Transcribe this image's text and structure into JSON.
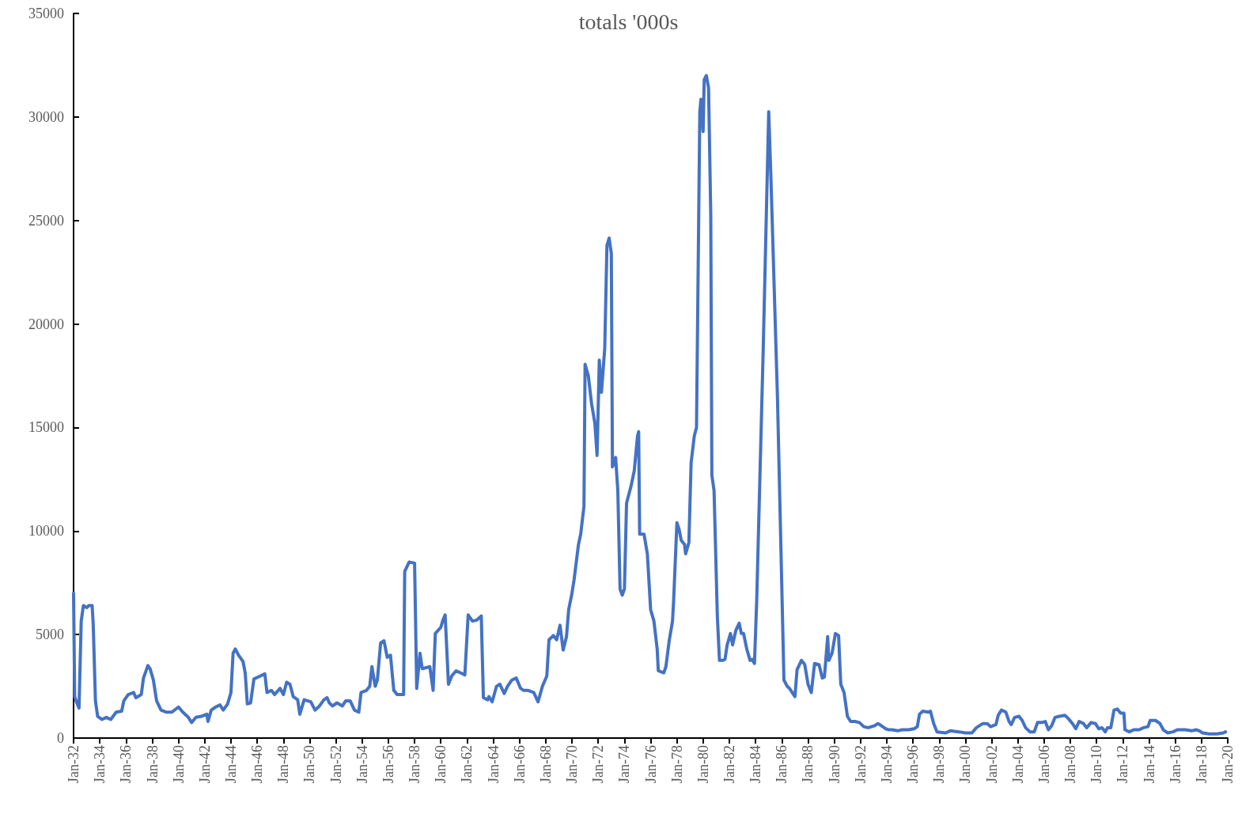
{
  "chart_data": {
    "type": "line",
    "title": "totals '000s",
    "marker": "none",
    "line_style": "solid",
    "xlim": [
      "1932-01",
      "2020-01"
    ],
    "xticks": [
      {
        "value": "1932-01",
        "label": "Jan-32"
      },
      {
        "value": "1934-01",
        "label": "Jan-34"
      },
      {
        "value": "1936-01",
        "label": "Jan-36"
      },
      {
        "value": "1938-01",
        "label": "Jan-38"
      },
      {
        "value": "1940-01",
        "label": "Jan-40"
      },
      {
        "value": "1942-01",
        "label": "Jan-42"
      },
      {
        "value": "1944-01",
        "label": "Jan-44"
      },
      {
        "value": "1946-01",
        "label": "Jan-46"
      },
      {
        "value": "1948-01",
        "label": "Jan-48"
      },
      {
        "value": "1950-01",
        "label": "Jan-50"
      },
      {
        "value": "1952-01",
        "label": "Jan-52"
      },
      {
        "value": "1954-01",
        "label": "Jan-54"
      },
      {
        "value": "1956-01",
        "label": "Jan-56"
      },
      {
        "value": "1958-01",
        "label": "Jan-58"
      },
      {
        "value": "1960-01",
        "label": "Jan-60"
      },
      {
        "value": "1962-01",
        "label": "Jan-62"
      },
      {
        "value": "1964-01",
        "label": "Jan-64"
      },
      {
        "value": "1966-01",
        "label": "Jan-66"
      },
      {
        "value": "1968-01",
        "label": "Jan-68"
      },
      {
        "value": "1970-01",
        "label": "Jan-70"
      },
      {
        "value": "1972-01",
        "label": "Jan-72"
      },
      {
        "value": "1974-01",
        "label": "Jan-74"
      },
      {
        "value": "1976-01",
        "label": "Jan-76"
      },
      {
        "value": "1978-01",
        "label": "Jan-78"
      },
      {
        "value": "1980-01",
        "label": "Jan-80"
      },
      {
        "value": "1982-01",
        "label": "Jan-82"
      },
      {
        "value": "1984-01",
        "label": "Jan-84"
      },
      {
        "value": "1986-01",
        "label": "Jan-86"
      },
      {
        "value": "1988-01",
        "label": "Jan-88"
      },
      {
        "value": "1990-01",
        "label": "Jan-90"
      },
      {
        "value": "1992-01",
        "label": "Jan-92"
      },
      {
        "value": "1994-01",
        "label": "Jan-94"
      },
      {
        "value": "1996-01",
        "label": "Jan-96"
      },
      {
        "value": "1998-01",
        "label": "Jan-98"
      },
      {
        "value": "2000-01",
        "label": "Jan-00"
      },
      {
        "value": "2002-01",
        "label": "Jan-02"
      },
      {
        "value": "2004-01",
        "label": "Jan-04"
      },
      {
        "value": "2006-01",
        "label": "Jan-06"
      },
      {
        "value": "2008-01",
        "label": "Jan-08"
      },
      {
        "value": "2010-01",
        "label": "Jan-10"
      },
      {
        "value": "2012-01",
        "label": "Jan-12"
      },
      {
        "value": "2014-01",
        "label": "Jan-14"
      },
      {
        "value": "2016-01",
        "label": "Jan-16"
      },
      {
        "value": "2018-01",
        "label": "Jan-18"
      },
      {
        "value": "2020-01",
        "label": "Jan-20"
      }
    ],
    "ylim": [
      0,
      35000
    ],
    "yticks": [
      0,
      5000,
      10000,
      15000,
      20000,
      25000,
      30000,
      35000
    ],
    "x": [
      "1932-01",
      "1932-02",
      "1932-04",
      "1932-06",
      "1932-08",
      "1932-10",
      "1933-01",
      "1933-03",
      "1933-06",
      "1933-07",
      "1933-09",
      "1933-11",
      "1934-03",
      "1934-07",
      "1934-11",
      "1935-04",
      "1935-09",
      "1935-11",
      "1936-03",
      "1936-08",
      "1936-10",
      "1937-03",
      "1937-05",
      "1937-09",
      "1937-11",
      "1938-02",
      "1938-05",
      "1938-09",
      "1939-02",
      "1939-07",
      "1940-01",
      "1940-05",
      "1940-10",
      "1941-01",
      "1941-05",
      "1941-10",
      "1942-03",
      "1942-04",
      "1942-07",
      "1942-11",
      "1943-03",
      "1943-06",
      "1943-10",
      "1944-01",
      "1944-03",
      "1944-05",
      "1944-08",
      "1944-12",
      "1945-02",
      "1945-04",
      "1945-07",
      "1945-10",
      "1946-02",
      "1946-08",
      "1946-10",
      "1947-02",
      "1947-05",
      "1947-10",
      "1948-01",
      "1948-04",
      "1948-07",
      "1948-10",
      "1949-02",
      "1949-04",
      "1949-08",
      "1950-02",
      "1950-06",
      "1950-10",
      "1951-02",
      "1951-05",
      "1951-07",
      "1951-10",
      "1952-02",
      "1952-07",
      "1952-10",
      "1953-02",
      "1953-06",
      "1953-10",
      "1953-12",
      "1954-05",
      "1954-08",
      "1954-10",
      "1955-01",
      "1955-03",
      "1955-06",
      "1955-09",
      "1955-12",
      "1956-03",
      "1956-06",
      "1956-09",
      "1957-03",
      "1957-04",
      "1957-08",
      "1958-01",
      "1958-03",
      "1958-06",
      "1958-08",
      "1959-03",
      "1959-06",
      "1959-08",
      "1960-01",
      "1960-03",
      "1960-05",
      "1960-08",
      "1960-11",
      "1961-03",
      "1961-07",
      "1961-11",
      "1962-02",
      "1962-06",
      "1962-10",
      "1963-02",
      "1963-04",
      "1963-08",
      "1963-09",
      "1963-12",
      "1964-04",
      "1964-07",
      "1964-11",
      "1965-02",
      "1965-06",
      "1965-10",
      "1966-02",
      "1966-05",
      "1966-09",
      "1967-02",
      "1967-06",
      "1967-10",
      "1968-02",
      "1968-04",
      "1968-08",
      "1968-11",
      "1969-02",
      "1969-05",
      "1969-08",
      "1969-10",
      "1970-01",
      "1970-03",
      "1970-07",
      "1970-09",
      "1970-12",
      "1971-01",
      "1971-04",
      "1971-07",
      "1971-10",
      "1971-12",
      "1972-02",
      "1972-04",
      "1972-07",
      "1972-09",
      "1972-11",
      "1973-01",
      "1973-02",
      "1973-05",
      "1973-07",
      "1973-09",
      "1973-11",
      "1974-01",
      "1974-03",
      "1974-07",
      "1974-10",
      "1975-01",
      "1975-02",
      "1975-03",
      "1975-07",
      "1975-10",
      "1976-01",
      "1976-04",
      "1976-07",
      "1976-08",
      "1977-01",
      "1977-03",
      "1977-06",
      "1977-09",
      "1977-10",
      "1978-01",
      "1978-03",
      "1978-05",
      "1978-08",
      "1978-09",
      "1978-12",
      "1979-02",
      "1979-05",
      "1979-07",
      "1979-10",
      "1979-11",
      "1980-01",
      "1980-02",
      "1980-04",
      "1980-06",
      "1980-08",
      "1980-09",
      "1980-11",
      "1981-02",
      "1981-04",
      "1981-07",
      "1981-09",
      "1981-11",
      "1982-02",
      "1982-04",
      "1982-07",
      "1982-10",
      "1982-12",
      "1983-02",
      "1983-05",
      "1983-08",
      "1983-10",
      "1983-12",
      "1984-02",
      "1984-08",
      "1985-01",
      "1985-03",
      "1985-09",
      "1986-03",
      "1986-06",
      "1986-08",
      "1987-01",
      "1987-03",
      "1987-07",
      "1987-10",
      "1988-01",
      "1988-04",
      "1988-07",
      "1988-11",
      "1989-02",
      "1989-04",
      "1989-07",
      "1989-08",
      "1989-11",
      "1990-02",
      "1990-05",
      "1990-07",
      "1990-10",
      "1991-01",
      "1991-04",
      "1991-08",
      "1991-12",
      "1992-04",
      "1992-08",
      "1993-02",
      "1993-05",
      "1993-08",
      "1993-12",
      "1994-03",
      "1994-06",
      "1994-11",
      "1995-03",
      "1995-09",
      "1996-02",
      "1996-05",
      "1996-07",
      "1996-10",
      "1997-03",
      "1997-05",
      "1997-08",
      "1997-11",
      "1998-07",
      "1998-11",
      "1999-07",
      "2000-01",
      "2000-07",
      "2000-11",
      "2001-05",
      "2001-09",
      "2001-12",
      "2002-05",
      "2002-07",
      "2002-10",
      "2003-02",
      "2003-05",
      "2003-07",
      "2003-10",
      "2004-02",
      "2004-05",
      "2004-08",
      "2004-12",
      "2005-04",
      "2005-07",
      "2005-11",
      "2006-02",
      "2006-05",
      "2006-08",
      "2006-11",
      "2007-03",
      "2007-08",
      "2007-11",
      "2008-03",
      "2008-06",
      "2008-09",
      "2009-01",
      "2009-04",
      "2009-08",
      "2009-12",
      "2010-03",
      "2010-06",
      "2010-09",
      "2010-11",
      "2011-02",
      "2011-05",
      "2011-08",
      "2011-11",
      "2012-02",
      "2012-03",
      "2012-07",
      "2012-11",
      "2013-04",
      "2013-08",
      "2013-12",
      "2014-02",
      "2014-07",
      "2014-11",
      "2015-02",
      "2015-06",
      "2015-11",
      "2016-03",
      "2016-10",
      "2017-04",
      "2017-08",
      "2017-11",
      "2018-02",
      "2018-08",
      "2019-03",
      "2019-09",
      "2019-11"
    ],
    "series": [
      {
        "color": "#4472c4",
        "values": [
          7000,
          2000,
          1700,
          1450,
          5650,
          6400,
          6300,
          6400,
          6400,
          5500,
          1800,
          1050,
          900,
          1000,
          900,
          1250,
          1300,
          1800,
          2100,
          2200,
          1950,
          2100,
          2900,
          3500,
          3350,
          2800,
          1800,
          1350,
          1250,
          1250,
          1500,
          1250,
          1000,
          750,
          1000,
          1050,
          1150,
          800,
          1350,
          1500,
          1600,
          1350,
          1650,
          2200,
          4100,
          4300,
          4000,
          3700,
          3150,
          1650,
          1700,
          2850,
          2950,
          3100,
          2200,
          2300,
          2100,
          2400,
          2100,
          2700,
          2600,
          2000,
          1850,
          1150,
          1850,
          1750,
          1350,
          1550,
          1850,
          1950,
          1700,
          1550,
          1700,
          1550,
          1800,
          1800,
          1350,
          1250,
          2200,
          2300,
          2500,
          3450,
          2500,
          2800,
          4600,
          4700,
          3900,
          4000,
          2300,
          2100,
          2100,
          8050,
          8500,
          8450,
          2400,
          4100,
          3350,
          3450,
          2300,
          5050,
          5350,
          5700,
          5950,
          2600,
          3000,
          3250,
          3150,
          3050,
          5950,
          5650,
          5700,
          5900,
          1950,
          1850,
          2000,
          1750,
          2500,
          2600,
          2150,
          2500,
          2800,
          2900,
          2400,
          2300,
          2300,
          2200,
          1750,
          2500,
          3000,
          4750,
          4950,
          4750,
          5450,
          4250,
          4900,
          6200,
          7000,
          7650,
          9350,
          9850,
          11200,
          18050,
          17500,
          16150,
          15200,
          13650,
          18250,
          16700,
          18800,
          23800,
          24150,
          23400,
          13100,
          13550,
          11950,
          7200,
          6900,
          7200,
          11350,
          12150,
          12900,
          14600,
          14800,
          9850,
          9850,
          8900,
          6200,
          5650,
          4300,
          3250,
          3150,
          3450,
          4700,
          5650,
          6600,
          10400,
          10100,
          9550,
          9350,
          8900,
          9450,
          13300,
          14600,
          15000,
          30250,
          30850,
          29300,
          31800,
          32000,
          31400,
          25300,
          12700,
          11950,
          5850,
          3750,
          3750,
          3800,
          4500,
          5050,
          4500,
          5200,
          5550,
          5050,
          5050,
          4300,
          3750,
          3800,
          3600,
          6600,
          18800,
          30250,
          27200,
          16500,
          2800,
          2500,
          2400,
          2000,
          3300,
          3750,
          3550,
          2600,
          2200,
          3600,
          3550,
          2900,
          2950,
          4900,
          3750,
          4100,
          5050,
          4950,
          2600,
          2200,
          1050,
          800,
          800,
          750,
          550,
          500,
          600,
          700,
          600,
          450,
          400,
          400,
          350,
          400,
          400,
          450,
          550,
          1150,
          1300,
          1250,
          1300,
          700,
          300,
          250,
          350,
          300,
          250,
          250,
          500,
          700,
          700,
          550,
          650,
          1100,
          1350,
          1250,
          800,
          650,
          1000,
          1050,
          850,
          500,
          300,
          300,
          750,
          750,
          800,
          400,
          600,
          1000,
          1050,
          1100,
          950,
          700,
          450,
          800,
          700,
          500,
          750,
          700,
          450,
          500,
          300,
          500,
          500,
          1350,
          1400,
          1200,
          1200,
          400,
          300,
          400,
          400,
          500,
          550,
          850,
          850,
          700,
          400,
          250,
          300,
          400,
          400,
          350,
          400,
          350,
          250,
          200,
          200,
          250,
          300
        ]
      }
    ]
  }
}
